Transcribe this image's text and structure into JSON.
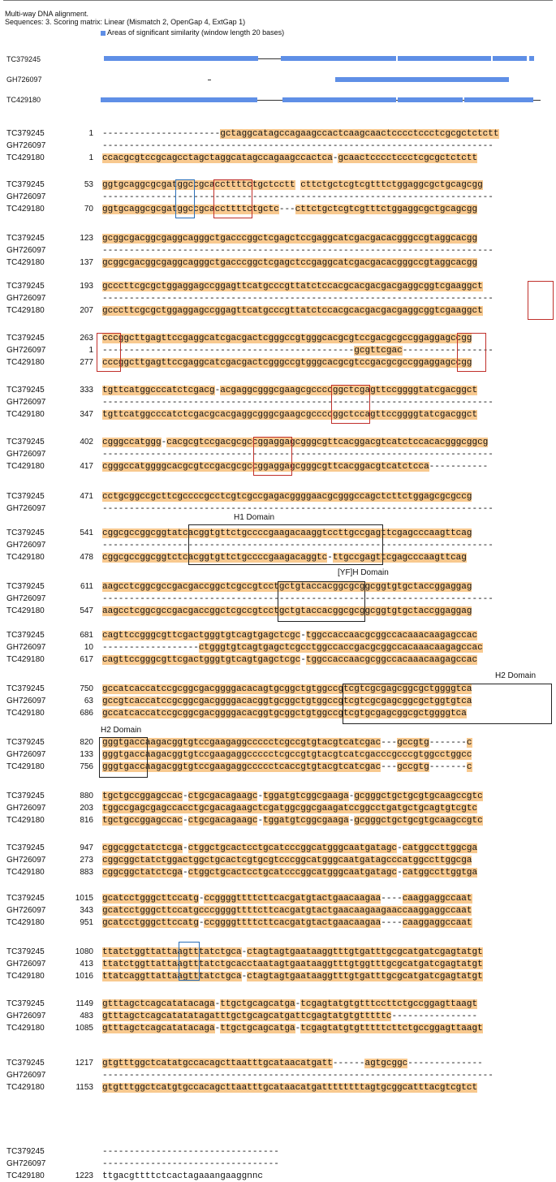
{
  "header": {
    "title": "Multi-way DNA alignment.",
    "info": "Sequences: 3.  Scoring matrix: Linear (Mismatch 2, OpenGap 4, ExtGap 1)",
    "legend": "Areas of significant similarity (window length 20 bases)"
  },
  "overview": {
    "names": [
      "TC379245",
      "GH726097",
      "TC429180"
    ]
  },
  "blocks": [
    {
      "rows": [
        {
          "name": "TC379245",
          "num": "1",
          "seq": "----------------------gctaggcatagccagaagccactcaagcaactcccctccctcgcgctctctt"
        },
        {
          "name": "GH726097",
          "num": "",
          "seq": "-------------------------------------------------------------------------"
        },
        {
          "name": "TC429180",
          "num": "1",
          "seq": "ccacgcgtccgcagcctagctaggcatagccagaagccactca-gcaactcccctccctcgcgctctctt"
        }
      ]
    },
    {
      "rows": [
        {
          "name": "TC379245",
          "num": "53",
          "seq": "ggtgcaggcgcgatggccgcaccttttctgctcctt cttctgctcgtcgtttctggaggcgctgcagcgg"
        },
        {
          "name": "GH726097",
          "num": "",
          "seq": "-------------------------------------------------------------------------"
        },
        {
          "name": "TC429180",
          "num": "70",
          "seq": "ggtgcaggcgcgatggccgcaccttttctgctc---cttctgctcgtcgtttctggaggcgctgcagcgg"
        }
      ]
    },
    {
      "rows": [
        {
          "name": "TC379245",
          "num": "123",
          "seq": "gcggcgacggcgaggcagggctgacccggctcgagctccgaggcatcgacgacacgggccgtaggcacgg"
        },
        {
          "name": "GH726097",
          "num": "",
          "seq": "-------------------------------------------------------------------------"
        },
        {
          "name": "TC429180",
          "num": "137",
          "seq": "gcggcgacggcgaggcagggctgacccggctcgagctccgaggcatcgacgacacgggccgtaggcacgg"
        }
      ]
    },
    {
      "rows": [
        {
          "name": "TC379245",
          "num": "193",
          "seq": "gcccttcgcgctggaggagccggagttcatgcccgttatctccacgcacgacgacgaggcggtcgaaggct"
        },
        {
          "name": "GH726097",
          "num": "",
          "seq": "-------------------------------------------------------------------------"
        },
        {
          "name": "TC429180",
          "num": "207",
          "seq": "gcccttcgcgctggaggagccggagttcatgcccgttatctccacgcacgacgacgaggcggtcgaaggct"
        }
      ]
    },
    {
      "rows": [
        {
          "name": "TC379245",
          "num": "263",
          "seq": "cccggcttgagttccgaggcatcgacgactcgggccgtgggcacgcgtccgacgcgccggaggagccgg"
        },
        {
          "name": "GH726097",
          "num": "1",
          "seq": "-----------------------------------------------gcgttcgac-----------------"
        },
        {
          "name": "TC429180",
          "num": "277",
          "seq": "cccggcttgagttccgaggcatcgacgactcgggccgtgggcacgcgtccgacgcgccggaggagccgg"
        }
      ]
    },
    {
      "rows": [
        {
          "name": "TC379245",
          "num": "333",
          "seq": "tgttcatggcccatctcgacg-acgaggcgggcgaagcgccccggctcgagttccggggtatcgacggct"
        },
        {
          "name": "GH726097",
          "num": "",
          "seq": "-------------------------------------------------------------------------"
        },
        {
          "name": "TC429180",
          "num": "347",
          "seq": "tgttcatggcccatctcgacgcacgaggcgggcgaagcgccccggctccagttccggggtatcgacggct"
        }
      ]
    },
    {
      "rows": [
        {
          "name": "TC379245",
          "num": "402",
          "seq": "cgggccatggg-cacgcgtccgacgcgccggaggagcgggcgttcacggacgtcatctccacacgggcggcg"
        },
        {
          "name": "GH726097",
          "num": "",
          "seq": "-------------------------------------------------------------------------"
        },
        {
          "name": "TC429180",
          "num": "417",
          "seq": "cgggccatggggcacgcgtccgacgcgccggaggagcgggcgttcacggacgtcatctcca-----------"
        }
      ]
    },
    {
      "rows": [
        {
          "name": "TC379245",
          "num": "471",
          "seq": "cctgcggccgcttcgccccgcctcgtcgccgagacggggaacgcgggccagctcttctggagcgcgccg"
        },
        {
          "name": "GH726097",
          "num": "",
          "seq": "-------------------------------------------------------------------------"
        }
      ]
    },
    {
      "label": "H1 Domain",
      "rows": [
        {
          "name": "TC379245",
          "num": "541",
          "seq": "cggcgccggcggtatcacggtgttctgccccgaagacaaggtccttgccgagttcgagcccaagttcag"
        },
        {
          "name": "GH726097",
          "num": "",
          "seq": "-------------------------------------------------------------------------"
        },
        {
          "name": "TC429180",
          "num": "478",
          "seq": "cggcgccggcggtctcacggtgttctgccccgaagacaggtc-ttgccgagttcgagcccaagttcag"
        }
      ]
    },
    {
      "label": "[YF]H Domain",
      "rows": [
        {
          "name": "TC379245",
          "num": "611",
          "seq": "aagcctcggcgccgacgaccggctcgccgtcctgctgtaccacggcgcggcggtgtgctaccggaggag"
        },
        {
          "name": "GH726097",
          "num": "",
          "seq": "-------------------------------------------------------------------------"
        },
        {
          "name": "TC429180",
          "num": "547",
          "seq": "aagcctcggcgccgacgaccggctcgccgtcctgctgtaccacggcgcggcggtgtgctaccggaggag"
        }
      ]
    },
    {
      "rows": [
        {
          "name": "TC379245",
          "num": "681",
          "seq": "cagttccgggcgttcgactgggtgtcagtgagctcgc-tggccaccaacgcggccacaaacaagagccac"
        },
        {
          "name": "GH726097",
          "num": "10",
          "seq": "------------------ctgggtgtcagtgagctcgcctggccaccgacgcggccacaaacaagagccac"
        },
        {
          "name": "TC429180",
          "num": "617",
          "seq": "cagttccgggcgttcgactgggtgtcagtgagctcgc-tggccaccaacgcggccacaaacaagagccac"
        }
      ]
    },
    {
      "rows": [
        {
          "name": "TC379245",
          "num": "750",
          "seq": "gccatcaccatccgcggcgacggggacacagtgcggctgtggccgtcgtcgcgagcggcgctggggtca"
        },
        {
          "name": "GH726097",
          "num": "63",
          "seq": "gccgtcaccatccgcggcgacggggacacggtgcggctgtggccgtcgtcgcgagcggcgctggtgtca"
        },
        {
          "name": "TC429180",
          "num": "686",
          "seq": "gccatcaccatccgcggcgacggggacacggtgcggctgtggccgtcgtgcgagcggcgctggggtca"
        }
      ]
    },
    {
      "label": "H2 Domain",
      "rows": [
        {
          "name": "TC379245",
          "num": "820",
          "seq": "gggtgaccaagacggtgtccgaagaggccccctcgccgtgtacgtcatcgac---gccgtg-------c"
        },
        {
          "name": "GH726097",
          "num": "133",
          "seq": "gggtgaccaagacggtgtccgaagaggccccctcgccgtgtacgtcatcgacccgcccgtggcctggcc"
        },
        {
          "name": "TC429180",
          "num": "756",
          "seq": "gggtgaccaagacggtgtccgaagaggccccctcaccgtgtacgtcatcgac---gccgtg-------c"
        }
      ]
    },
    {
      "label": "H2 Domain",
      "rows": [
        {
          "name": "TC379245",
          "num": "880",
          "seq": "tgctgccggagccac-ctgcgacagaagc-tggatgtcggcgaaga-gcgggctgctgcgtgcaagccgtc"
        },
        {
          "name": "GH726097",
          "num": "203",
          "seq": "tggccgagcgagccacctgcgacagaagctcgatggcggcgaagatccggcctgatgctgcagtgtcgtc"
        },
        {
          "name": "TC429180",
          "num": "816",
          "seq": "tgctgccggagccac-ctgcgacagaagc-tggatgtcggcgaaga-gcgggctgctgcgtgcaagccgtc"
        }
      ]
    },
    {
      "rows": [
        {
          "name": "TC379245",
          "num": "947",
          "seq": "cggcggctatctcga-ctggctgcactcctgcatcccggcatgggcaatgatagc-catggccttggcga"
        },
        {
          "name": "GH726097",
          "num": "273",
          "seq": "cggcggctatctggactggctgcactcgtgcgtcccggcatgggcaatgatagcccatggccttggcga"
        },
        {
          "name": "TC429180",
          "num": "883",
          "seq": "cggcggctatctcga-ctggctgcactcctgcatcccggcatgggcaatgatagc-catggccttggtga"
        }
      ]
    },
    {
      "rows": [
        {
          "name": "TC379245",
          "num": "1015",
          "seq": "gcatcctgggcttccatg-ccggggttttcttcacgatgtactgaacaagaa----caaggaggccaat"
        },
        {
          "name": "GH726097",
          "num": "343",
          "seq": "gcatcctgggcttccatgcccggggttttcttcacgatgtactgaacaagaagaaccaaggaggccaat"
        },
        {
          "name": "TC429180",
          "num": "951",
          "seq": "gcatcctgggcttccatg-ccggggttttcttcacgatgtactgaacaagaa----caaggaggccaat"
        }
      ]
    },
    {
      "rows": [
        {
          "name": "TC379245",
          "num": "1080",
          "seq": "ttatctggttattaagtttatctgca-ctagtagtgaataaggtttgtgatttgcgcatgatcgagtatgt"
        },
        {
          "name": "GH726097",
          "num": "413",
          "seq": "ttatctggttattaagtttatctgcacctaatagtgaataaggtttgtggtttgcgcatgatcgagtatgt"
        },
        {
          "name": "TC429180",
          "num": "1016",
          "seq": "ttatcaggttattaagtttatctgca-ctagtagtgaataaggtttgtgatttgcgcatgatcgagtatgt"
        }
      ]
    },
    {
      "rows": [
        {
          "name": "TC379245",
          "num": "1149",
          "seq": "gtttagctcagcatatacaga-ttgctgcagcatga-tcgagtatgtgtttccttctgccggagttaagt"
        },
        {
          "name": "GH726097",
          "num": "483",
          "seq": "gtttagctcagcatatatagatttgctgcagcatgattcgagtatgtgtttttc----------------"
        },
        {
          "name": "TC429180",
          "num": "1085",
          "seq": "gtttagctcagcatatacaga-ttgctgcagcatga-tcgagtatgtgtttttcttctgccggagttaagt"
        }
      ]
    },
    {
      "rows": [
        {
          "name": "TC379245",
          "num": "1217",
          "seq": "gtgtttggctcatatgccacagcttaatttgcataacatgatt------agtgcggc--------------"
        },
        {
          "name": "GH726097",
          "num": "",
          "seq": "-------------------------------------------------------------------------"
        },
        {
          "name": "TC429180",
          "num": "1153",
          "seq": "gtgtttggctcatgtgccacagcttaatttgcataacatgattttttttagtgcggcatttacgtcgtct"
        }
      ]
    },
    {
      "rows": [
        {
          "name": "TC379245",
          "num": "",
          "seq": "---------------------------------"
        },
        {
          "name": "GH726097",
          "num": "",
          "seq": "---------------------------------"
        },
        {
          "name": "TC429180",
          "num": "1223",
          "seq": "ttgacgttttctcactagaaangaaggnnc"
        }
      ]
    }
  ]
}
